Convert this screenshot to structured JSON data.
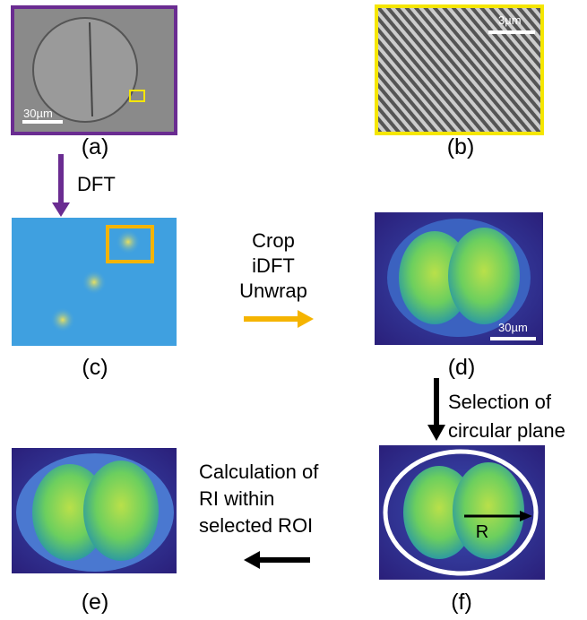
{
  "panels": [
    {
      "label": "(a)",
      "scale_bar": "30µm"
    },
    {
      "label": "(b)",
      "scale_bar": "3µm"
    },
    {
      "label": "(c)"
    },
    {
      "label": "(d)",
      "scale_bar": "30µm"
    },
    {
      "label": "(e)"
    },
    {
      "label": "(f)",
      "marker": "R"
    }
  ],
  "steps": [
    {
      "lines": [
        "DFT"
      ]
    },
    {
      "lines": [
        "Crop",
        "iDFT",
        "Unwrap"
      ]
    },
    {
      "lines": [
        "Selection of",
        "circular plane"
      ]
    },
    {
      "lines": [
        "Calculation of",
        "RI within",
        "selected ROI"
      ]
    }
  ]
}
